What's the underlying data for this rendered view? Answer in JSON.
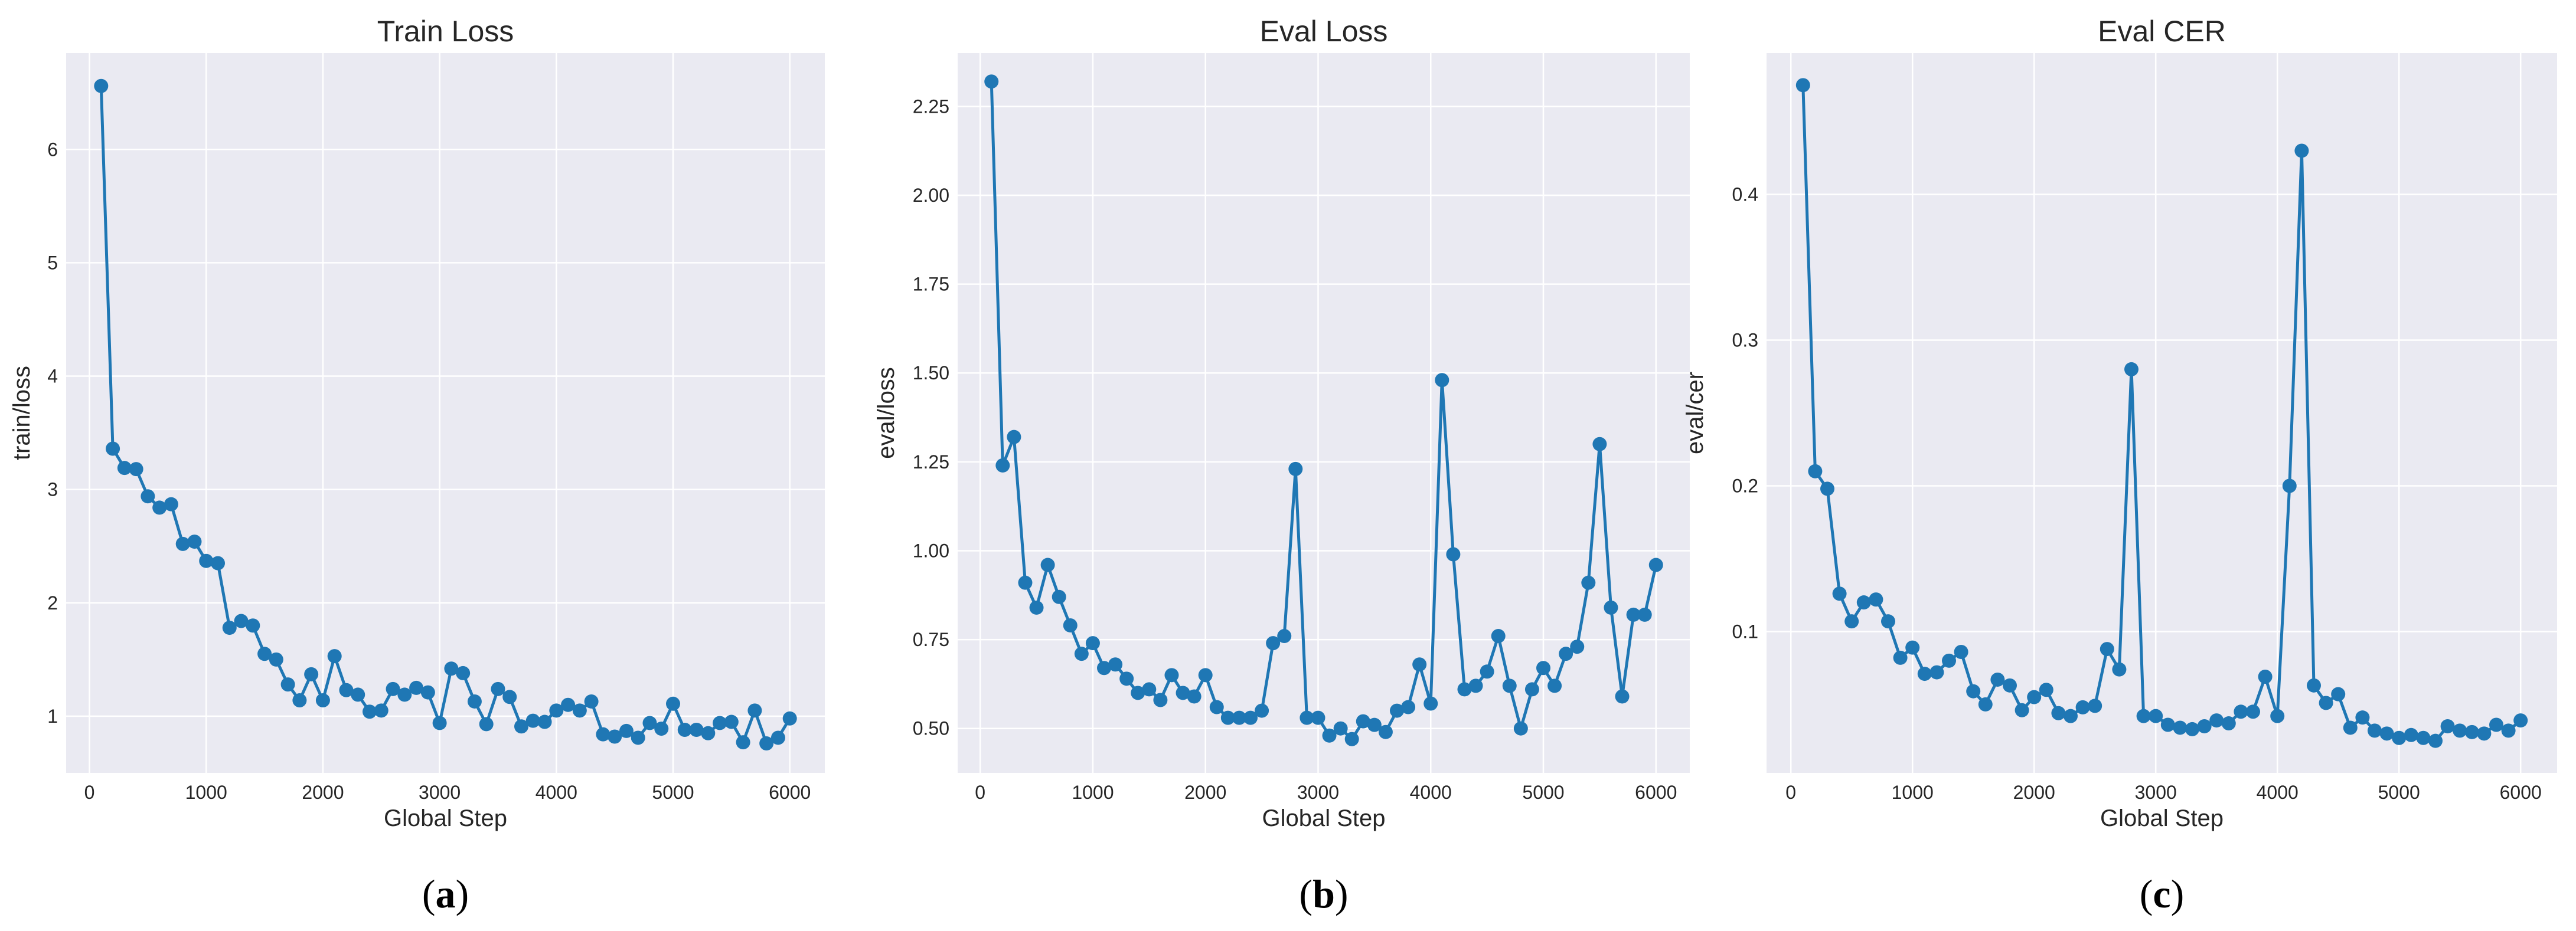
{
  "chart_data": [
    {
      "type": "line",
      "title": "Train Loss",
      "xlabel": "Global Step",
      "ylabel": "train/loss",
      "caption": "a",
      "xlim": [
        -200,
        6300
      ],
      "ylim": [
        0.5,
        6.85
      ],
      "xticks": [
        0,
        1000,
        2000,
        3000,
        4000,
        5000,
        6000
      ],
      "yticks": [
        1,
        2,
        3,
        4,
        5,
        6
      ],
      "x": [
        100,
        200,
        300,
        400,
        500,
        600,
        700,
        800,
        900,
        1000,
        1100,
        1200,
        1300,
        1400,
        1500,
        1600,
        1700,
        1800,
        1900,
        2000,
        2100,
        2200,
        2300,
        2400,
        2500,
        2600,
        2700,
        2800,
        2900,
        3000,
        3100,
        3200,
        3300,
        3400,
        3500,
        3600,
        3700,
        3800,
        3900,
        4000,
        4100,
        4200,
        4300,
        4400,
        4500,
        4600,
        4700,
        4800,
        4900,
        5000,
        5100,
        5200,
        5300,
        5400,
        5500,
        5600,
        5700,
        5800,
        5900,
        6000
      ],
      "y": [
        6.56,
        3.36,
        3.19,
        3.18,
        2.94,
        2.84,
        2.87,
        2.52,
        2.54,
        2.37,
        2.35,
        1.78,
        1.84,
        1.8,
        1.55,
        1.5,
        1.28,
        1.14,
        1.37,
        1.14,
        1.53,
        1.23,
        1.19,
        1.04,
        1.05,
        1.24,
        1.19,
        1.25,
        1.21,
        0.94,
        1.42,
        1.38,
        1.13,
        0.93,
        1.24,
        1.17,
        0.91,
        0.96,
        0.95,
        1.05,
        1.1,
        1.05,
        1.13,
        0.84,
        0.82,
        0.87,
        0.81,
        0.94,
        0.89,
        1.11,
        0.88,
        0.88,
        0.85,
        0.94,
        0.95,
        0.77,
        1.05,
        0.76,
        0.81,
        0.98
      ],
      "grid": true,
      "color": "#1f77b4"
    },
    {
      "type": "line",
      "title": "Eval Loss",
      "xlabel": "Global Step",
      "ylabel": "eval/loss",
      "caption": "b",
      "xlim": [
        -200,
        6300
      ],
      "ylim": [
        0.375,
        2.4
      ],
      "xticks": [
        0,
        1000,
        2000,
        3000,
        4000,
        5000,
        6000
      ],
      "yticks": [
        0.5,
        0.75,
        1.0,
        1.25,
        1.5,
        1.75,
        2.0,
        2.25
      ],
      "ytick_labels": [
        "0.50",
        "0.75",
        "1.00",
        "1.25",
        "1.50",
        "1.75",
        "2.00",
        "2.25"
      ],
      "x": [
        100,
        200,
        300,
        400,
        500,
        600,
        700,
        800,
        900,
        1000,
        1100,
        1200,
        1300,
        1400,
        1500,
        1600,
        1700,
        1800,
        1900,
        2000,
        2100,
        2200,
        2300,
        2400,
        2500,
        2600,
        2700,
        2800,
        2900,
        3000,
        3100,
        3200,
        3300,
        3400,
        3500,
        3600,
        3700,
        3800,
        3900,
        4000,
        4100,
        4200,
        4300,
        4400,
        4500,
        4600,
        4700,
        4800,
        4900,
        5000,
        5100,
        5200,
        5300,
        5400,
        5500,
        5600,
        5700,
        5800,
        5900,
        6000
      ],
      "y": [
        2.32,
        1.24,
        1.32,
        0.91,
        0.84,
        0.96,
        0.87,
        0.79,
        0.71,
        0.74,
        0.67,
        0.68,
        0.64,
        0.6,
        0.61,
        0.58,
        0.65,
        0.6,
        0.59,
        0.65,
        0.56,
        0.53,
        0.53,
        0.53,
        0.55,
        0.74,
        0.76,
        1.23,
        0.53,
        0.53,
        0.48,
        0.5,
        0.47,
        0.52,
        0.51,
        0.49,
        0.55,
        0.56,
        0.68,
        0.57,
        1.48,
        0.99,
        0.61,
        0.62,
        0.66,
        0.76,
        0.62,
        0.5,
        0.61,
        0.67,
        0.62,
        0.71,
        0.73,
        0.91,
        1.3,
        0.84,
        0.59,
        0.82,
        0.82,
        0.96
      ],
      "grid": true,
      "color": "#1f77b4"
    },
    {
      "type": "line",
      "title": "Eval CER",
      "xlabel": "Global Step",
      "ylabel": "eval/cer",
      "caption": "c",
      "xlim": [
        -200,
        6300
      ],
      "ylim": [
        0.003,
        0.497
      ],
      "xticks": [
        0,
        1000,
        2000,
        3000,
        4000,
        5000,
        6000
      ],
      "yticks": [
        0.1,
        0.2,
        0.3,
        0.4
      ],
      "ytick_labels": [
        "0.1",
        "0.2",
        "0.3",
        "0.4"
      ],
      "x": [
        100,
        200,
        300,
        400,
        500,
        600,
        700,
        800,
        900,
        1000,
        1100,
        1200,
        1300,
        1400,
        1500,
        1600,
        1700,
        1800,
        1900,
        2000,
        2100,
        2200,
        2300,
        2400,
        2500,
        2600,
        2700,
        2800,
        2900,
        3000,
        3100,
        3200,
        3300,
        3400,
        3500,
        3600,
        3700,
        3800,
        3900,
        4000,
        4100,
        4200,
        4300,
        4400,
        4500,
        4600,
        4700,
        4800,
        4900,
        5000,
        5100,
        5200,
        5300,
        5400,
        5500,
        5600,
        5700,
        5800,
        5900,
        6000
      ],
      "y": [
        0.475,
        0.21,
        0.198,
        0.126,
        0.107,
        0.12,
        0.122,
        0.107,
        0.082,
        0.089,
        0.071,
        0.072,
        0.08,
        0.086,
        0.059,
        0.05,
        0.067,
        0.063,
        0.046,
        0.055,
        0.06,
        0.044,
        0.042,
        0.048,
        0.049,
        0.088,
        0.074,
        0.28,
        0.042,
        0.042,
        0.036,
        0.034,
        0.033,
        0.035,
        0.039,
        0.037,
        0.045,
        0.045,
        0.069,
        0.042,
        0.2,
        0.43,
        0.063,
        0.051,
        0.057,
        0.034,
        0.041,
        0.032,
        0.03,
        0.027,
        0.029,
        0.027,
        0.025,
        0.035,
        0.032,
        0.031,
        0.03,
        0.036,
        0.032,
        0.039
      ],
      "grid": true,
      "color": "#1f77b4"
    }
  ],
  "style": {
    "axes_background": "#eaeaf2",
    "grid_color": "#ffffff",
    "line_color": "#1f77b4",
    "marker_color": "#1f77b4",
    "text_color": "#262626",
    "page_background": "#ffffff"
  }
}
